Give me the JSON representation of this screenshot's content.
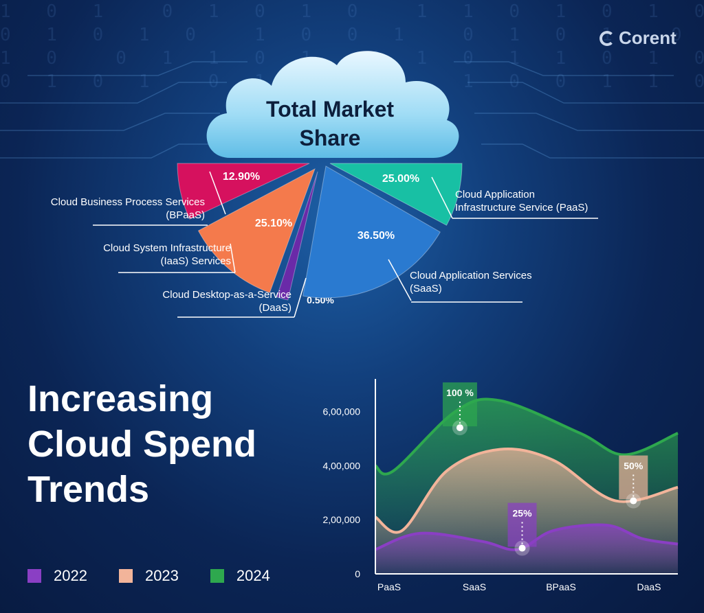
{
  "brand": {
    "logo_text": "Corent"
  },
  "pie_title": [
    "Total Market",
    "Share"
  ],
  "trend_title": [
    "Increasing",
    "Cloud Spend",
    "Trends"
  ],
  "chart_data": [
    {
      "type": "pie",
      "title": "Total Market Share",
      "slices": [
        {
          "label_lines": [
            "Cloud Business Process Services",
            "(BPaaS)"
          ],
          "value": 12.9,
          "value_label": "12.90%",
          "color": "#d6115e"
        },
        {
          "label_lines": [
            "Cloud System Infrastructure",
            "(IaaS) Services"
          ],
          "value": 25.1,
          "value_label": "25.10%",
          "color": "#f47a4c"
        },
        {
          "label_lines": [
            "Cloud Desktop-as-a-Service",
            "(DaaS)"
          ],
          "value": 0.5,
          "value_label": "0.50%",
          "color": "#6a2aa8"
        },
        {
          "label_lines": [
            "Cloud Application Services",
            "(SaaS)"
          ],
          "value": 36.5,
          "value_label": "36.50%",
          "color": "#2a7ad0"
        },
        {
          "label_lines": [
            "Cloud Application",
            "Infrastructure Service (PaaS)"
          ],
          "value": 25.0,
          "value_label": "25.00%",
          "color": "#18c0a4"
        }
      ]
    },
    {
      "type": "area",
      "categories": [
        "PaaS",
        "SaaS",
        "BPaaS",
        "DaaS"
      ],
      "y_ticks": [
        0,
        200000,
        400000,
        600000
      ],
      "y_tick_labels": [
        "0",
        "2,00,000",
        "4,00,000",
        "6,00,000"
      ],
      "ylim": [
        0,
        700000
      ],
      "series": [
        {
          "name": "2024",
          "color": "#2ea84e",
          "points": [
            [
              0,
              400000
            ],
            [
              0.2,
              380000
            ],
            [
              0.9,
              600000
            ],
            [
              1.4,
              640000
            ],
            [
              2.3,
              520000
            ],
            [
              2.8,
              440000
            ],
            [
              3.4,
              520000
            ]
          ]
        },
        {
          "name": "2023",
          "color": "#f2b49a",
          "points": [
            [
              0,
              210000
            ],
            [
              0.3,
              160000
            ],
            [
              0.8,
              380000
            ],
            [
              1.4,
              460000
            ],
            [
              2.0,
              420000
            ],
            [
              2.7,
              270000
            ],
            [
              3.4,
              320000
            ]
          ]
        },
        {
          "name": "2022",
          "color": "#8a3fc4",
          "points": [
            [
              0,
              90000
            ],
            [
              0.5,
              150000
            ],
            [
              1.2,
              120000
            ],
            [
              1.6,
              90000
            ],
            [
              2.0,
              160000
            ],
            [
              2.6,
              180000
            ],
            [
              3.0,
              130000
            ],
            [
              3.4,
              110000
            ]
          ]
        }
      ],
      "annotations": [
        {
          "text": "100 %",
          "x": 0.95,
          "y": 540000,
          "color": "#2ea84e"
        },
        {
          "text": "25%",
          "x": 1.65,
          "y": 95000,
          "color": "#8a3fc4"
        },
        {
          "text": "50%",
          "x": 2.9,
          "y": 270000,
          "color": "#f2b49a"
        }
      ],
      "legend": [
        "2022",
        "2023",
        "2024"
      ]
    }
  ]
}
